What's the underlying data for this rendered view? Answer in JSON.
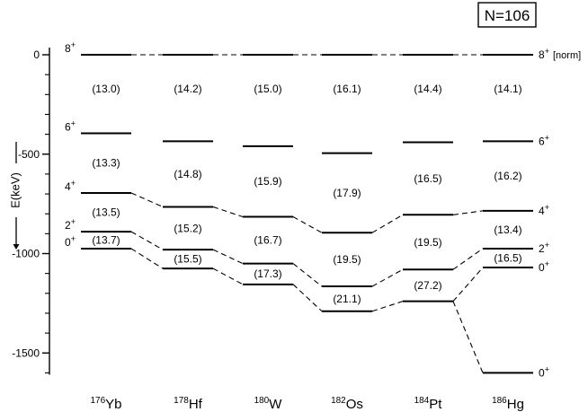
{
  "title_box": "N=106",
  "norm_note": "[norm]",
  "chart_data": {
    "type": "level-scheme",
    "ylabel": "E(keV)",
    "ylim": [
      -1600,
      0
    ],
    "y_ticks": [
      0,
      -500,
      -1000,
      -1500
    ],
    "nuclei": [
      {
        "mass": "176",
        "element": "Yb",
        "levels": {
          "8+": 0,
          "6+": -395,
          "4+": -695,
          "2+": -890,
          "0+": -975
        },
        "ratios": [
          "(13.0)",
          "(13.3)",
          "(13.5)",
          "(13.7)",
          ""
        ]
      },
      {
        "mass": "178",
        "element": "Hf",
        "levels": {
          "8+": 0,
          "6+": -435,
          "4+": -765,
          "2+": -980,
          "0+": -1075
        },
        "ratios": [
          "(14.2)",
          "(14.8)",
          "(15.2)",
          "(15.5)",
          ""
        ]
      },
      {
        "mass": "180",
        "element": "W",
        "levels": {
          "8+": 0,
          "6+": -460,
          "4+": -815,
          "2+": -1050,
          "0+": -1155
        },
        "ratios": [
          "(15.0)",
          "(15.9)",
          "(16.7)",
          "(17.3)",
          ""
        ]
      },
      {
        "mass": "182",
        "element": "Os",
        "levels": {
          "8+": 0,
          "6+": -495,
          "4+": -895,
          "2+": -1165,
          "0+": -1290
        },
        "ratios": [
          "(16.1)",
          "(17.9)",
          "(19.5)",
          "(21.1)",
          ""
        ]
      },
      {
        "mass": "184",
        "element": "Pt",
        "levels": {
          "8+": 0,
          "6+": -440,
          "4+": -805,
          "2+": -1080,
          "0+": -1240
        },
        "ratios": [
          "(14.4)",
          "(16.5)",
          "(19.5)",
          "(27.2)",
          ""
        ]
      },
      {
        "mass": "186",
        "element": "Hg",
        "levels": {
          "8+": 0,
          "6+": -435,
          "4+": -785,
          "2+": -975,
          "0+": -1070,
          "0+ (2)": -1600
        },
        "ratios": [
          "(14.1)",
          "(16.2)",
          "(13.4)",
          "(16.5)",
          ""
        ]
      }
    ]
  }
}
